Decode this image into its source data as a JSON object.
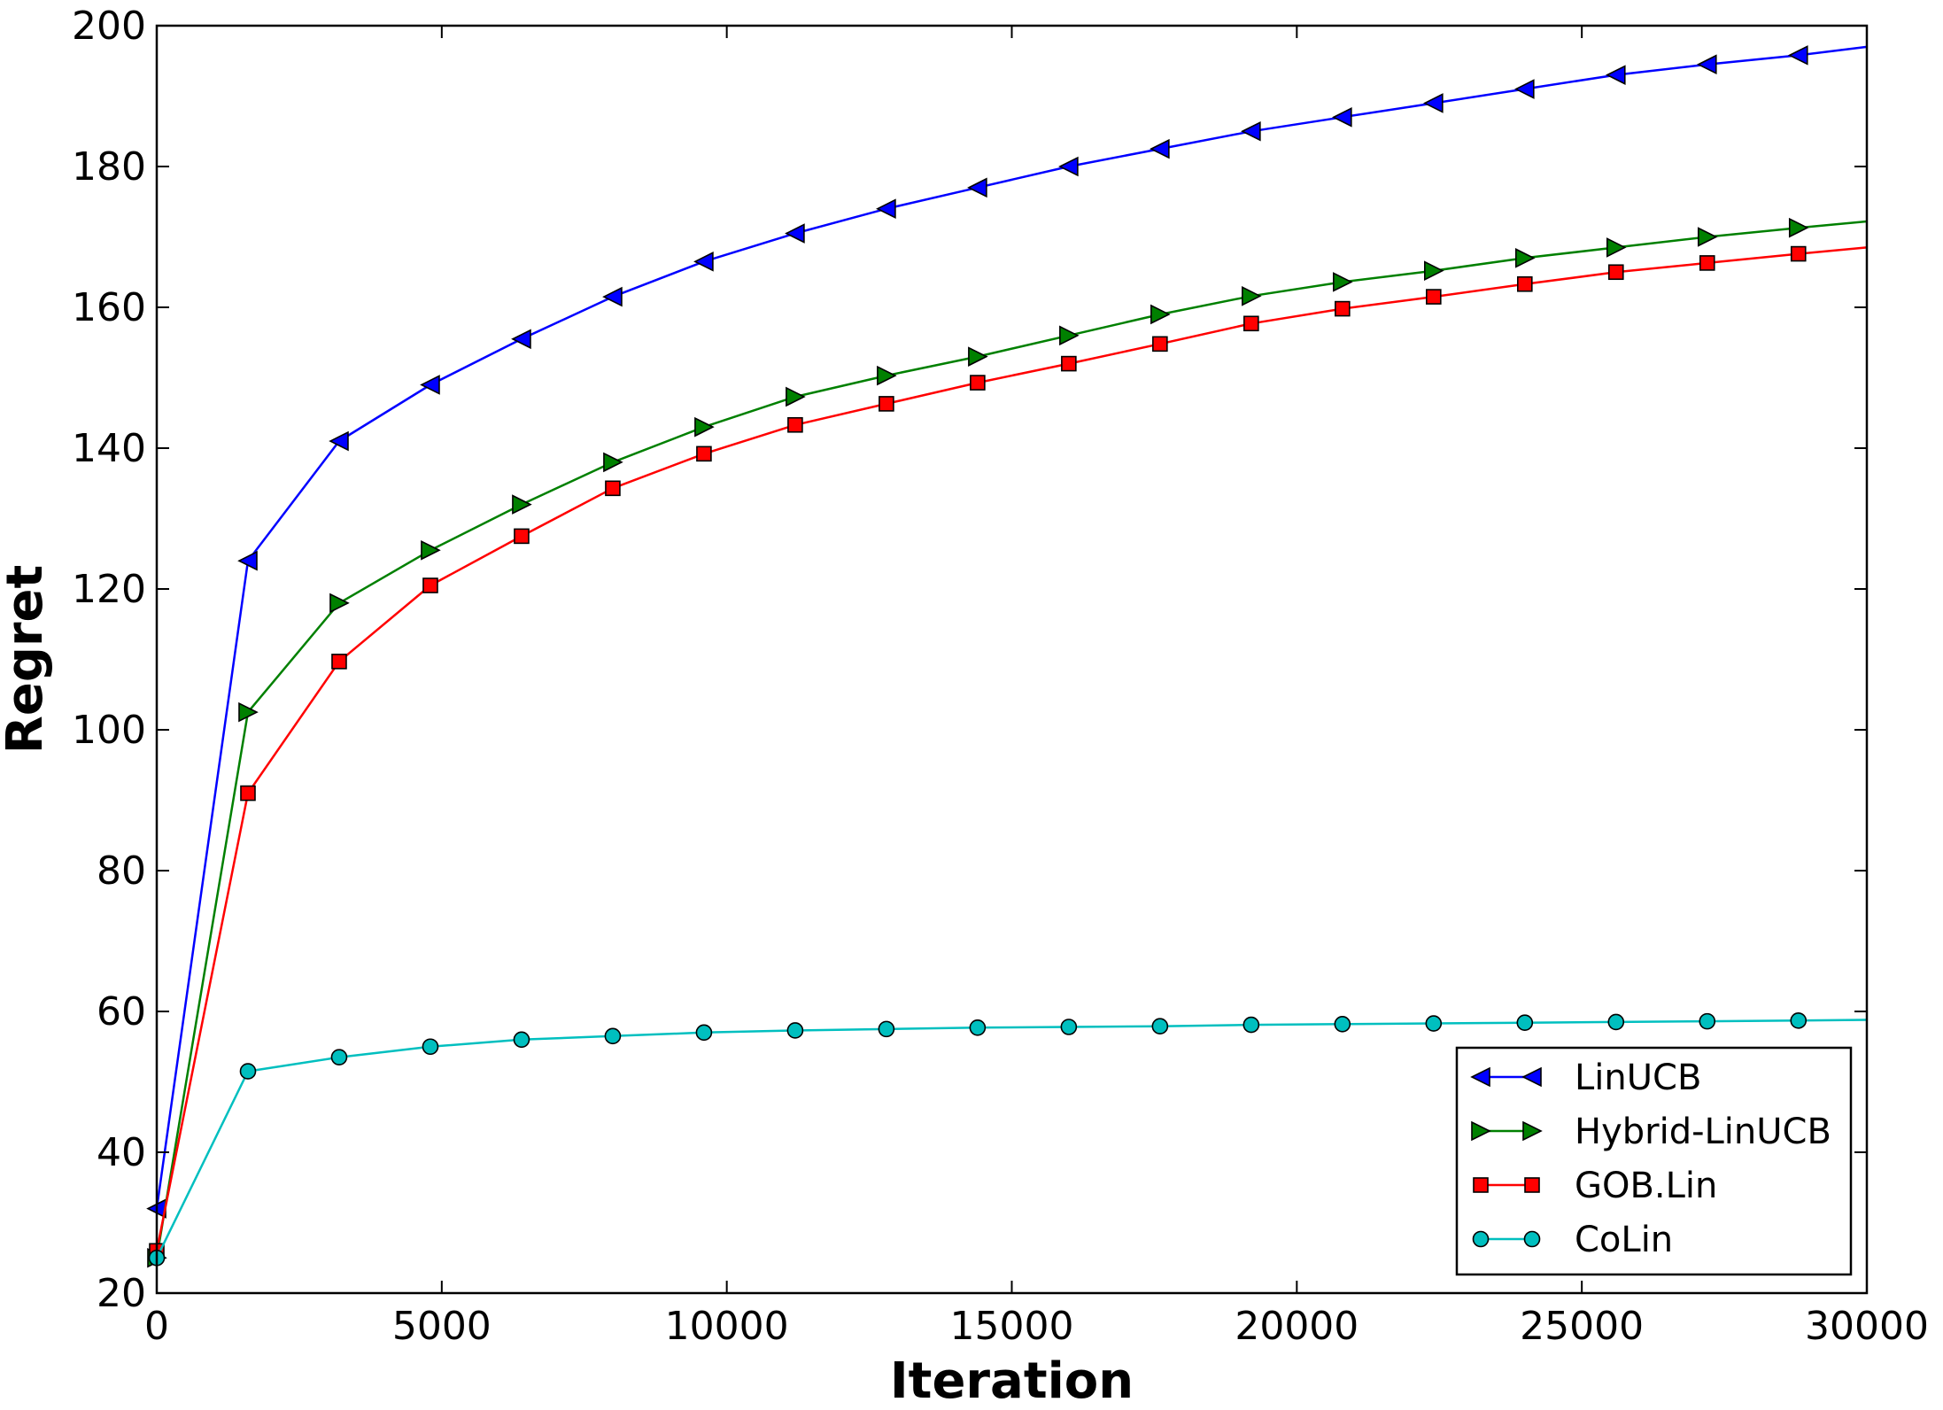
{
  "chart_data": {
    "type": "line",
    "title": "",
    "xlabel": "Iteration",
    "ylabel": "Regret",
    "xlim": [
      0,
      30000
    ],
    "ylim": [
      20,
      200
    ],
    "x_ticks": [
      0,
      5000,
      10000,
      15000,
      20000,
      25000,
      30000
    ],
    "y_ticks": [
      20,
      40,
      60,
      80,
      100,
      120,
      140,
      160,
      180,
      200
    ],
    "grid": false,
    "legend_position": "bottom-right",
    "x": [
      0,
      1600,
      3200,
      4800,
      6400,
      8000,
      9600,
      11200,
      12800,
      14400,
      16000,
      17600,
      19200,
      20800,
      22400,
      24000,
      25600,
      27200,
      28800,
      30000
    ],
    "series": [
      {
        "name": "LinUCB",
        "color": "#0000ff",
        "marker": "triangle-left",
        "values": [
          32,
          124,
          141,
          149,
          155.5,
          161.5,
          166.5,
          170.5,
          174,
          177,
          180,
          182.5,
          185,
          187,
          189,
          191,
          193,
          194.5,
          195.8,
          197
        ]
      },
      {
        "name": "Hybrid-LinUCB",
        "color": "#008000",
        "marker": "triangle-right",
        "values": [
          25,
          102.5,
          118,
          125.5,
          132,
          138,
          143,
          147.3,
          150.3,
          153,
          156,
          159,
          161.6,
          163.6,
          165.2,
          167,
          168.5,
          170,
          171.3,
          172.2
        ]
      },
      {
        "name": "GOB.Lin",
        "color": "#ff0000",
        "marker": "square",
        "values": [
          26,
          91,
          109.7,
          120.5,
          127.5,
          134.3,
          139.2,
          143.3,
          146.3,
          149.3,
          152,
          154.8,
          157.7,
          159.8,
          161.5,
          163.3,
          165,
          166.3,
          167.6,
          168.5
        ]
      },
      {
        "name": "CoLin",
        "color": "#00bfbf",
        "marker": "circle",
        "values": [
          25,
          51.5,
          53.5,
          55,
          56,
          56.5,
          57,
          57.3,
          57.5,
          57.7,
          57.8,
          57.9,
          58.1,
          58.2,
          58.3,
          58.4,
          58.5,
          58.6,
          58.7,
          58.8
        ]
      }
    ]
  }
}
